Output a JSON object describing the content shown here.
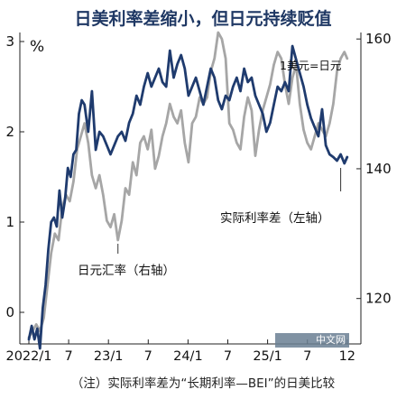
{
  "chart_data": {
    "type": "line",
    "title": "日美利率差缩小，但日元持续贬值",
    "note": "（注）实际利率差为“长期利率—BEI”的日美比较",
    "left_unit": "%",
    "right_unit_label": "1美元=日元",
    "y_left": {
      "lim": [
        -0.35,
        3.1
      ],
      "ticks": [
        0,
        1,
        2,
        3
      ]
    },
    "y_right": {
      "lim": [
        113,
        161
      ],
      "ticks": [
        120,
        140,
        160
      ]
    },
    "x_ticks": [
      "2022/1",
      "7",
      "23/1",
      "7",
      "24/1",
      "7",
      "25/1",
      "7",
      "12"
    ],
    "x_range": [
      0,
      35
    ],
    "series": [
      {
        "name": "实际利率差（左轴）",
        "axis": "left",
        "color": "#1f3b6e",
        "x": [
          0,
          0.3,
          0.6,
          0.9,
          1.2,
          1.5,
          1.8,
          2.1,
          2.4,
          2.7,
          3.0,
          3.3,
          3.6,
          3.9,
          4.2,
          4.5,
          4.8,
          5.1,
          5.4,
          5.7,
          6.0,
          6.4,
          6.8,
          7.2,
          7.6,
          8.0,
          8.4,
          8.8,
          9.2,
          9.6,
          10.0,
          10.4,
          10.8,
          11.2,
          11.6,
          12.0,
          12.4,
          12.8,
          13.2,
          13.6,
          14.0,
          14.4,
          14.8,
          15.2,
          15.6,
          16.0,
          16.4,
          16.8,
          17.2,
          17.6,
          18.0,
          18.4,
          18.8,
          19.2,
          19.6,
          20.0,
          20.4,
          20.8,
          21.2,
          21.6,
          22.0,
          22.4,
          22.8,
          23.2,
          23.6,
          24.0,
          24.4,
          24.8,
          25.2,
          25.6,
          26.0,
          26.4,
          26.8,
          27.2,
          27.6,
          28.0,
          28.4,
          28.8,
          29.2,
          29.6,
          30.0,
          30.4,
          30.8,
          31.2,
          31.6,
          32.0,
          32.4,
          32.8,
          33.2,
          33.6,
          34.0,
          34.3
        ],
        "values": [
          -0.3,
          -0.15,
          -0.3,
          -0.18,
          -0.4,
          0.05,
          0.3,
          0.7,
          1.0,
          1.05,
          0.95,
          1.35,
          1.05,
          1.25,
          1.6,
          1.5,
          1.75,
          1.8,
          2.2,
          2.35,
          2.3,
          2.0,
          2.45,
          1.8,
          2.0,
          1.95,
          1.85,
          1.75,
          1.85,
          1.95,
          2.0,
          1.9,
          2.1,
          2.2,
          2.4,
          2.3,
          2.5,
          2.65,
          2.5,
          2.6,
          2.7,
          2.55,
          2.5,
          2.9,
          2.6,
          2.75,
          2.85,
          2.7,
          2.4,
          2.5,
          2.6,
          2.45,
          2.3,
          2.5,
          2.7,
          2.6,
          2.35,
          2.25,
          2.4,
          2.35,
          2.5,
          2.6,
          2.45,
          2.7,
          2.55,
          2.6,
          2.4,
          2.3,
          2.2,
          2.0,
          2.1,
          2.3,
          2.5,
          2.45,
          2.55,
          2.45,
          2.95,
          2.8,
          2.65,
          2.5,
          2.3,
          2.15,
          2.05,
          1.95,
          2.25,
          1.85,
          1.75,
          1.72,
          1.68,
          1.75,
          1.65,
          1.72
        ]
      },
      {
        "name": "日元汇率（右轴）",
        "axis": "right",
        "color": "#a6a6a6",
        "x": [
          0,
          0.4,
          0.8,
          1.2,
          1.6,
          2.0,
          2.4,
          2.8,
          3.2,
          3.6,
          4.0,
          4.4,
          4.8,
          5.2,
          5.6,
          6.0,
          6.4,
          6.8,
          7.2,
          7.6,
          8.0,
          8.4,
          8.8,
          9.2,
          9.6,
          10.0,
          10.4,
          10.8,
          11.2,
          11.6,
          12.0,
          12.4,
          12.8,
          13.2,
          13.6,
          14.0,
          14.4,
          14.8,
          15.2,
          15.6,
          16.0,
          16.4,
          16.8,
          17.2,
          17.6,
          18.0,
          18.4,
          18.8,
          19.2,
          19.6,
          20.0,
          20.4,
          20.8,
          21.2,
          21.6,
          22.0,
          22.4,
          22.8,
          23.2,
          23.6,
          24.0,
          24.4,
          24.8,
          25.2,
          25.6,
          26.0,
          26.4,
          26.8,
          27.2,
          27.6,
          28.0,
          28.4,
          28.8,
          29.2,
          29.6,
          30.0,
          30.4,
          30.8,
          31.2,
          31.6,
          32.0,
          32.4,
          32.8,
          33.2,
          33.6,
          34.0,
          34.3
        ],
        "values": [
          114,
          115,
          116,
          115,
          117,
          122,
          127,
          130,
          129,
          134,
          136,
          135,
          138,
          143,
          145,
          147,
          144,
          139,
          137,
          139,
          136,
          132,
          131,
          133,
          129,
          132,
          137,
          136,
          141,
          139,
          144,
          145,
          143,
          146,
          140,
          142,
          145,
          147,
          150,
          148,
          147,
          149,
          144,
          141,
          147,
          148,
          151,
          150,
          151,
          155,
          157,
          161,
          160,
          157,
          147,
          146,
          144,
          143,
          148,
          151,
          149,
          142,
          146,
          149,
          151,
          153,
          156,
          158,
          157,
          153,
          150,
          154,
          156,
          150,
          146,
          144,
          143,
          145,
          147,
          146,
          145,
          147,
          150,
          155,
          157,
          158,
          157
        ],
        "note": "values in yen per dollar"
      }
    ],
    "annotations": [
      {
        "text": "实际利率差（左轴）",
        "series": 0,
        "x": 33.6
      },
      {
        "text": "日元汇率（右轴）",
        "series": 1,
        "x": 9.6
      }
    ],
    "grid": false,
    "legend": "inline annotations"
  },
  "watermark": "中文网"
}
